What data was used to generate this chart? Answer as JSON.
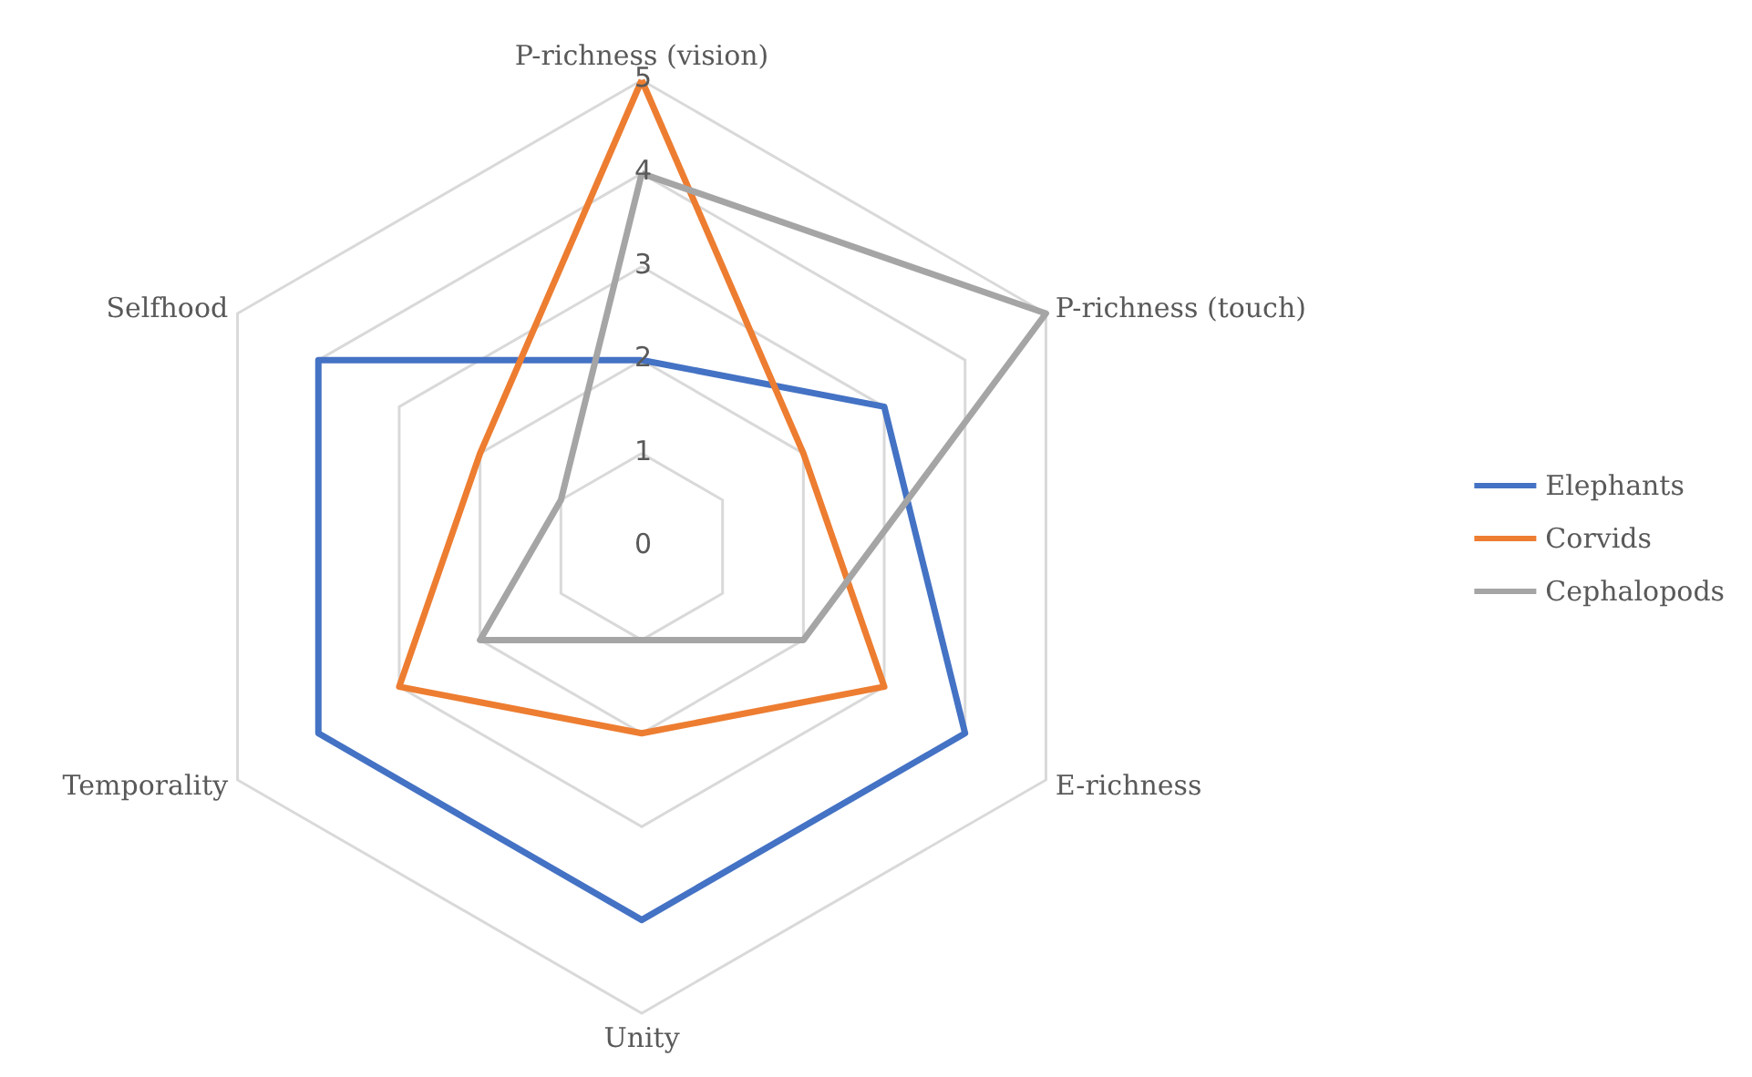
{
  "chart_data": {
    "type": "radar",
    "categories": [
      "P-richness (vision)",
      "P-richness (touch)",
      "E-richness",
      "Unity",
      "Temporality",
      "Selfhood"
    ],
    "series": [
      {
        "name": "Elephants",
        "color": "#4472c4",
        "values": [
          2,
          3,
          4,
          4,
          4,
          4
        ]
      },
      {
        "name": "Corvids",
        "color": "#ed7d31",
        "values": [
          5,
          2,
          3,
          2,
          3,
          2
        ]
      },
      {
        "name": "Cephalopods",
        "color": "#a5a5a5",
        "values": [
          4,
          5,
          2,
          1,
          2,
          1
        ]
      }
    ],
    "ylim": [
      0,
      5
    ],
    "yticks": [
      0,
      1,
      2,
      3,
      4,
      5
    ],
    "grid": true,
    "legend": "right",
    "marker": "none",
    "line_style": "solid"
  }
}
